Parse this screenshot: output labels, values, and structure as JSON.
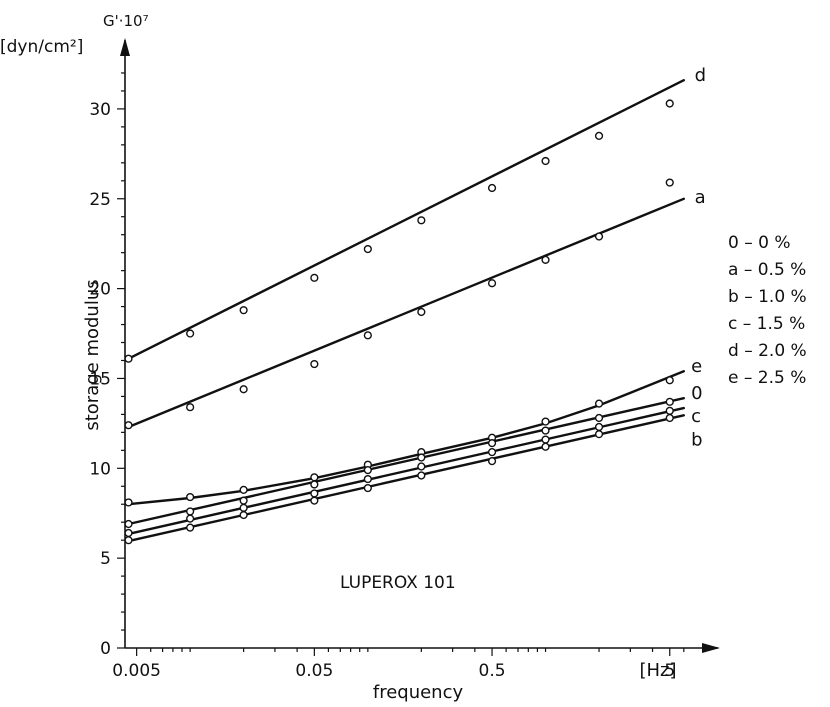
{
  "chart_data": {
    "type": "line",
    "y_axis_title": "G'·10⁷",
    "y_axis_units": "[dyn/cm²]",
    "ylabel": "storage modulus",
    "xlabel": "frequency",
    "x_unit": "[Hz]",
    "x_scale": "log",
    "xlim": [
      0.0043,
      6.5
    ],
    "ylim": [
      0,
      33
    ],
    "x_ticks": [
      "0.005",
      "0.05",
      "0.5",
      "5"
    ],
    "y_ticks": [
      "0",
      "5",
      "10",
      "15",
      "20",
      "25",
      "30"
    ],
    "annotation": "LUPEROX 101",
    "x": [
      0.0045,
      0.01,
      0.02,
      0.05,
      0.1,
      0.2,
      0.5,
      1,
      2,
      5
    ],
    "series": [
      {
        "name": "d",
        "line": [
          [
            0.0045,
            16.1
          ],
          [
            6,
            31.6
          ]
        ],
        "points": [
          [
            0.0045,
            16.1
          ],
          [
            0.01,
            17.5
          ],
          [
            0.02,
            18.8
          ],
          [
            0.05,
            20.6
          ],
          [
            0.1,
            22.2
          ],
          [
            0.2,
            23.8
          ],
          [
            0.5,
            25.6
          ],
          [
            1,
            27.1
          ],
          [
            2,
            28.5
          ],
          [
            5,
            30.3
          ]
        ]
      },
      {
        "name": "a",
        "line": [
          [
            0.0045,
            12.3
          ],
          [
            6,
            25.0
          ]
        ],
        "points": [
          [
            0.0045,
            12.4
          ],
          [
            0.01,
            13.4
          ],
          [
            0.02,
            14.4
          ],
          [
            0.05,
            15.8
          ],
          [
            0.1,
            17.4
          ],
          [
            0.2,
            18.7
          ],
          [
            0.5,
            20.3
          ],
          [
            1,
            21.6
          ],
          [
            2,
            22.9
          ],
          [
            5,
            25.9
          ]
        ]
      },
      {
        "name": "e",
        "line": [
          [
            0.0045,
            8.0
          ],
          [
            0.01,
            8.35
          ],
          [
            0.02,
            8.75
          ],
          [
            0.05,
            9.45
          ],
          [
            0.1,
            10.1
          ],
          [
            0.2,
            10.8
          ],
          [
            0.5,
            11.7
          ],
          [
            1,
            12.5
          ],
          [
            2,
            13.5
          ],
          [
            6,
            15.4
          ]
        ],
        "points": [
          [
            0.0045,
            8.1
          ],
          [
            0.01,
            8.4
          ],
          [
            0.02,
            8.8
          ],
          [
            0.05,
            9.5
          ],
          [
            0.1,
            10.2
          ],
          [
            0.2,
            10.9
          ],
          [
            0.5,
            11.7
          ],
          [
            1,
            12.6
          ],
          [
            2,
            13.6
          ],
          [
            5,
            14.9
          ]
        ]
      },
      {
        "name": "0",
        "line": [
          [
            0.0045,
            6.9
          ],
          [
            6,
            13.9
          ]
        ],
        "points": [
          [
            0.0045,
            6.9
          ],
          [
            0.01,
            7.6
          ],
          [
            0.02,
            8.2
          ],
          [
            0.05,
            9.1
          ],
          [
            0.1,
            9.9
          ],
          [
            0.2,
            10.6
          ],
          [
            0.5,
            11.4
          ],
          [
            1,
            12.1
          ],
          [
            2,
            12.8
          ],
          [
            5,
            13.7
          ]
        ]
      },
      {
        "name": "c",
        "line": [
          [
            0.0045,
            6.35
          ],
          [
            6,
            13.35
          ]
        ],
        "points": [
          [
            0.0045,
            6.4
          ],
          [
            0.01,
            7.2
          ],
          [
            0.02,
            7.8
          ],
          [
            0.05,
            8.6
          ],
          [
            0.1,
            9.4
          ],
          [
            0.2,
            10.1
          ],
          [
            0.5,
            10.9
          ],
          [
            1,
            11.6
          ],
          [
            2,
            12.3
          ],
          [
            5,
            13.2
          ]
        ]
      },
      {
        "name": "b",
        "line": [
          [
            0.0045,
            5.95
          ],
          [
            6,
            12.95
          ]
        ],
        "points": [
          [
            0.0045,
            6.0
          ],
          [
            0.01,
            6.7
          ],
          [
            0.02,
            7.4
          ],
          [
            0.05,
            8.2
          ],
          [
            0.1,
            8.9
          ],
          [
            0.2,
            9.6
          ],
          [
            0.5,
            10.4
          ],
          [
            1,
            11.2
          ],
          [
            2,
            11.9
          ],
          [
            5,
            12.8
          ]
        ]
      }
    ],
    "legend": [
      "0 – 0 %",
      "a – 0.5 %",
      "b – 1.0 %",
      "c – 1.5 %",
      "d – 2.0 %",
      "e – 2.5 %"
    ]
  }
}
